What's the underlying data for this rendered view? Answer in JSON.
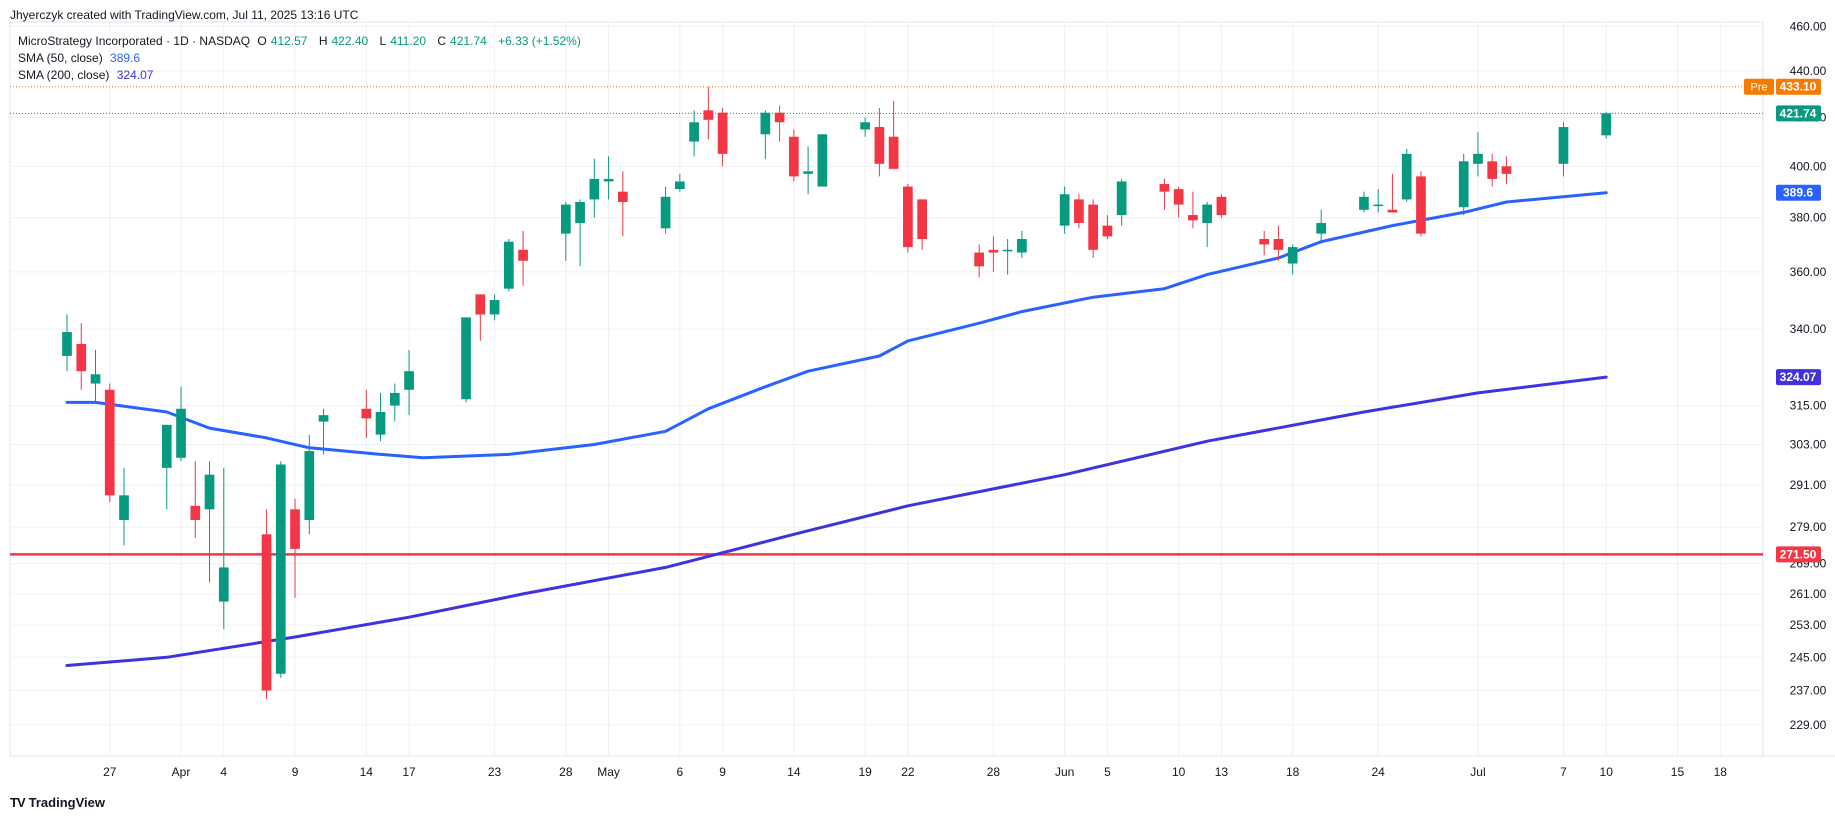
{
  "header": {
    "credit": "Jhyerczyk created with TradingView.com, Jul 11, 2025 13:16 UTC"
  },
  "legend": {
    "symbol": "MicroStrategy Incorporated · 1D · NASDAQ",
    "o_label": "O",
    "o_value": "412.57",
    "h_label": "H",
    "h_value": "422.40",
    "l_label": "L",
    "l_value": "411.20",
    "c_label": "C",
    "c_value": "421.74",
    "change": "+6.33 (+1.52%)",
    "sma50_label": "SMA (50, close)",
    "sma50_value": "389.6",
    "sma200_label": "SMA (200, close)",
    "sma200_value": "324.07"
  },
  "footer": {
    "brand": "TradingView",
    "logo": "TV"
  },
  "colors": {
    "up": "#089981",
    "down": "#f23645",
    "sma50": "#2962ff",
    "sma200": "#3f32e0",
    "level": "#f23645",
    "pre": "#f57c00",
    "grid": "#eef0f4",
    "axis_text": "#131722"
  },
  "chart_data": {
    "type": "candlestick",
    "y_scale": "log",
    "ylim": [
      222,
      462
    ],
    "y_ticks": [
      229,
      237,
      245,
      253,
      261,
      269,
      279,
      291,
      303,
      315,
      340,
      360,
      380,
      400,
      420,
      440,
      460
    ],
    "x_tick_labels": [
      {
        "label": "27",
        "date": "2025-03-27"
      },
      {
        "label": "Apr",
        "date": "2025-04-01"
      },
      {
        "label": "4",
        "date": "2025-04-04"
      },
      {
        "label": "9",
        "date": "2025-04-09"
      },
      {
        "label": "14",
        "date": "2025-04-14"
      },
      {
        "label": "17",
        "date": "2025-04-17"
      },
      {
        "label": "23",
        "date": "2025-04-23"
      },
      {
        "label": "28",
        "date": "2025-04-28"
      },
      {
        "label": "May",
        "date": "2025-05-01"
      },
      {
        "label": "6",
        "date": "2025-05-06"
      },
      {
        "label": "9",
        "date": "2025-05-09"
      },
      {
        "label": "14",
        "date": "2025-05-14"
      },
      {
        "label": "19",
        "date": "2025-05-19"
      },
      {
        "label": "22",
        "date": "2025-05-22"
      },
      {
        "label": "28",
        "date": "2025-05-28"
      },
      {
        "label": "Jun",
        "date": "2025-06-02"
      },
      {
        "label": "5",
        "date": "2025-06-05"
      },
      {
        "label": "10",
        "date": "2025-06-10"
      },
      {
        "label": "13",
        "date": "2025-06-13"
      },
      {
        "label": "18",
        "date": "2025-06-18"
      },
      {
        "label": "24",
        "date": "2025-06-24"
      },
      {
        "label": "Jul",
        "date": "2025-07-01"
      },
      {
        "label": "7",
        "date": "2025-07-07"
      },
      {
        "label": "10",
        "date": "2025-07-10"
      },
      {
        "label": "15",
        "date": "2025-07-15"
      },
      {
        "label": "18",
        "date": "2025-07-18"
      }
    ],
    "candles": [
      {
        "date": "2025-03-24",
        "o": 331,
        "h": 345,
        "l": 326,
        "c": 339
      },
      {
        "date": "2025-03-25",
        "o": 335,
        "h": 342,
        "l": 320,
        "c": 326
      },
      {
        "date": "2025-03-26",
        "o": 322,
        "h": 333,
        "l": 316,
        "c": 325
      },
      {
        "date": "2025-03-27",
        "o": 320,
        "h": 322,
        "l": 286,
        "c": 288
      },
      {
        "date": "2025-03-28",
        "o": 281,
        "h": 296,
        "l": 274,
        "c": 288
      },
      {
        "date": "2025-03-31",
        "o": 296,
        "h": 309,
        "l": 284,
        "c": 309
      },
      {
        "date": "2025-04-01",
        "o": 299,
        "h": 321,
        "l": 298,
        "c": 314
      },
      {
        "date": "2025-04-02",
        "o": 285,
        "h": 298,
        "l": 276,
        "c": 281
      },
      {
        "date": "2025-04-03",
        "o": 284,
        "h": 298,
        "l": 264,
        "c": 294
      },
      {
        "date": "2025-04-04",
        "o": 259,
        "h": 296,
        "l": 252,
        "c": 268
      },
      {
        "date": "2025-04-07",
        "o": 277,
        "h": 284,
        "l": 235,
        "c": 237
      },
      {
        "date": "2025-04-08",
        "o": 241,
        "h": 298,
        "l": 240,
        "c": 297
      },
      {
        "date": "2025-04-09",
        "o": 284,
        "h": 287,
        "l": 260,
        "c": 273
      },
      {
        "date": "2025-04-10",
        "o": 281,
        "h": 306,
        "l": 277,
        "c": 301
      },
      {
        "date": "2025-04-11",
        "o": 310,
        "h": 314,
        "l": 300,
        "c": 312
      },
      {
        "date": "2025-04-14",
        "o": 314,
        "h": 320,
        "l": 305,
        "c": 311
      },
      {
        "date": "2025-04-15",
        "o": 306,
        "h": 319,
        "l": 304,
        "c": 313
      },
      {
        "date": "2025-04-16",
        "o": 315,
        "h": 322,
        "l": 310,
        "c": 319
      },
      {
        "date": "2025-04-17",
        "o": 320,
        "h": 333,
        "l": 312,
        "c": 326
      },
      {
        "date": "2025-04-21",
        "o": 317,
        "h": 344,
        "l": 316,
        "c": 344
      },
      {
        "date": "2025-04-22",
        "o": 352,
        "h": 352,
        "l": 336,
        "c": 345
      },
      {
        "date": "2025-04-23",
        "o": 345,
        "h": 352,
        "l": 343,
        "c": 350
      },
      {
        "date": "2025-04-24",
        "o": 354,
        "h": 372,
        "l": 353,
        "c": 371
      },
      {
        "date": "2025-04-25",
        "o": 368,
        "h": 375,
        "l": 355,
        "c": 364
      },
      {
        "date": "2025-04-28",
        "o": 374,
        "h": 386,
        "l": 364,
        "c": 385
      },
      {
        "date": "2025-04-29",
        "o": 378,
        "h": 387,
        "l": 362,
        "c": 386
      },
      {
        "date": "2025-04-30",
        "o": 387,
        "h": 403,
        "l": 380,
        "c": 395
      },
      {
        "date": "2025-05-01",
        "o": 394,
        "h": 404,
        "l": 387,
        "c": 395
      },
      {
        "date": "2025-05-02",
        "o": 390,
        "h": 398,
        "l": 373,
        "c": 386
      },
      {
        "date": "2025-05-05",
        "o": 376,
        "h": 392,
        "l": 374,
        "c": 388
      },
      {
        "date": "2025-05-06",
        "o": 391,
        "h": 397,
        "l": 390,
        "c": 394
      },
      {
        "date": "2025-05-07",
        "o": 410,
        "h": 423,
        "l": 404,
        "c": 418
      },
      {
        "date": "2025-05-08",
        "o": 423,
        "h": 433,
        "l": 411,
        "c": 419
      },
      {
        "date": "2025-05-09",
        "o": 422,
        "h": 424,
        "l": 400,
        "c": 405
      },
      {
        "date": "2025-05-12",
        "o": 413,
        "h": 423,
        "l": 403,
        "c": 422
      },
      {
        "date": "2025-05-13",
        "o": 422,
        "h": 425,
        "l": 410,
        "c": 418
      },
      {
        "date": "2025-05-14",
        "o": 412,
        "h": 415,
        "l": 394,
        "c": 396
      },
      {
        "date": "2025-05-15",
        "o": 397,
        "h": 408,
        "l": 389,
        "c": 398
      },
      {
        "date": "2025-05-16",
        "o": 392,
        "h": 413,
        "l": 392,
        "c": 413
      },
      {
        "date": "2025-05-19",
        "o": 415,
        "h": 420,
        "l": 412,
        "c": 418
      },
      {
        "date": "2025-05-20",
        "o": 416,
        "h": 424,
        "l": 396,
        "c": 401
      },
      {
        "date": "2025-05-21",
        "o": 412,
        "h": 427,
        "l": 399,
        "c": 399
      },
      {
        "date": "2025-05-22",
        "o": 392,
        "h": 393,
        "l": 367,
        "c": 369
      },
      {
        "date": "2025-05-23",
        "o": 387,
        "h": 387,
        "l": 368,
        "c": 372
      },
      {
        "date": "2025-05-27",
        "o": 367,
        "h": 370,
        "l": 358,
        "c": 362
      },
      {
        "date": "2025-05-28",
        "o": 368,
        "h": 373,
        "l": 360,
        "c": 367
      },
      {
        "date": "2025-05-29",
        "o": 368,
        "h": 372,
        "l": 359,
        "c": 368
      },
      {
        "date": "2025-05-30",
        "o": 367,
        "h": 375,
        "l": 365,
        "c": 372
      },
      {
        "date": "2025-06-02",
        "o": 377,
        "h": 392,
        "l": 374,
        "c": 389
      },
      {
        "date": "2025-06-03",
        "o": 387,
        "h": 389,
        "l": 376,
        "c": 378
      },
      {
        "date": "2025-06-04",
        "o": 385,
        "h": 387,
        "l": 365,
        "c": 368
      },
      {
        "date": "2025-06-05",
        "o": 377,
        "h": 381,
        "l": 372,
        "c": 373
      },
      {
        "date": "2025-06-06",
        "o": 381,
        "h": 395,
        "l": 377,
        "c": 394
      },
      {
        "date": "2025-06-09",
        "o": 393,
        "h": 395,
        "l": 383,
        "c": 390
      },
      {
        "date": "2025-06-10",
        "o": 391,
        "h": 392,
        "l": 380,
        "c": 385
      },
      {
        "date": "2025-06-11",
        "o": 381,
        "h": 390,
        "l": 376,
        "c": 379
      },
      {
        "date": "2025-06-12",
        "o": 378,
        "h": 386,
        "l": 369,
        "c": 385
      },
      {
        "date": "2025-06-13",
        "o": 388,
        "h": 389,
        "l": 380,
        "c": 381
      },
      {
        "date": "2025-06-16",
        "o": 372,
        "h": 375,
        "l": 366,
        "c": 370
      },
      {
        "date": "2025-06-17",
        "o": 372,
        "h": 377,
        "l": 364,
        "c": 368
      },
      {
        "date": "2025-06-18",
        "o": 363,
        "h": 370,
        "l": 359,
        "c": 369
      },
      {
        "date": "2025-06-20",
        "o": 374,
        "h": 383,
        "l": 371,
        "c": 378
      },
      {
        "date": "2025-06-23",
        "o": 383,
        "h": 390,
        "l": 382,
        "c": 388
      },
      {
        "date": "2025-06-24",
        "o": 385,
        "h": 391,
        "l": 382,
        "c": 385
      },
      {
        "date": "2025-06-25",
        "o": 383,
        "h": 397,
        "l": 382,
        "c": 382
      },
      {
        "date": "2025-06-26",
        "o": 387,
        "h": 407,
        "l": 386,
        "c": 405
      },
      {
        "date": "2025-06-27",
        "o": 396,
        "h": 398,
        "l": 373,
        "c": 374
      },
      {
        "date": "2025-06-30",
        "o": 384,
        "h": 405,
        "l": 381,
        "c": 402
      },
      {
        "date": "2025-07-01",
        "o": 401,
        "h": 414,
        "l": 396,
        "c": 405
      },
      {
        "date": "2025-07-02",
        "o": 402,
        "h": 405,
        "l": 392,
        "c": 395
      },
      {
        "date": "2025-07-03",
        "o": 400,
        "h": 404,
        "l": 393,
        "c": 397
      },
      {
        "date": "2025-07-07",
        "o": 401,
        "h": 418,
        "l": 396,
        "c": 416
      },
      {
        "date": "2025-07-10",
        "o": 412.57,
        "h": 422.4,
        "l": 411.2,
        "c": 421.74
      }
    ],
    "sma50": [
      {
        "date": "2025-03-24",
        "v": 316
      },
      {
        "date": "2025-03-26",
        "v": 316
      },
      {
        "date": "2025-03-31",
        "v": 313
      },
      {
        "date": "2025-04-03",
        "v": 308
      },
      {
        "date": "2025-04-07",
        "v": 305
      },
      {
        "date": "2025-04-10",
        "v": 302
      },
      {
        "date": "2025-04-15",
        "v": 300
      },
      {
        "date": "2025-04-18",
        "v": 299
      },
      {
        "date": "2025-04-24",
        "v": 300
      },
      {
        "date": "2025-04-30",
        "v": 303
      },
      {
        "date": "2025-05-05",
        "v": 307
      },
      {
        "date": "2025-05-08",
        "v": 314
      },
      {
        "date": "2025-05-12",
        "v": 321
      },
      {
        "date": "2025-05-15",
        "v": 326
      },
      {
        "date": "2025-05-20",
        "v": 331
      },
      {
        "date": "2025-05-22",
        "v": 336
      },
      {
        "date": "2025-05-27",
        "v": 342
      },
      {
        "date": "2025-05-30",
        "v": 346
      },
      {
        "date": "2025-06-04",
        "v": 351
      },
      {
        "date": "2025-06-09",
        "v": 354
      },
      {
        "date": "2025-06-12",
        "v": 359
      },
      {
        "date": "2025-06-17",
        "v": 365
      },
      {
        "date": "2025-06-20",
        "v": 371
      },
      {
        "date": "2025-06-25",
        "v": 377
      },
      {
        "date": "2025-06-30",
        "v": 382
      },
      {
        "date": "2025-07-03",
        "v": 386
      },
      {
        "date": "2025-07-10",
        "v": 389.6
      }
    ],
    "sma200": [
      {
        "date": "2025-03-24",
        "v": 243
      },
      {
        "date": "2025-03-31",
        "v": 245
      },
      {
        "date": "2025-04-09",
        "v": 250
      },
      {
        "date": "2025-04-17",
        "v": 255
      },
      {
        "date": "2025-04-25",
        "v": 261
      },
      {
        "date": "2025-05-05",
        "v": 268
      },
      {
        "date": "2025-05-14",
        "v": 277
      },
      {
        "date": "2025-05-22",
        "v": 285
      },
      {
        "date": "2025-06-02",
        "v": 294
      },
      {
        "date": "2025-06-12",
        "v": 304
      },
      {
        "date": "2025-06-23",
        "v": 313
      },
      {
        "date": "2025-07-01",
        "v": 319
      },
      {
        "date": "2025-07-10",
        "v": 324.07
      }
    ],
    "horizontal_level": {
      "value": 271.5,
      "label": "271.50"
    },
    "price_tags": {
      "pre": {
        "tag": "Pre",
        "value": 433.1,
        "label": "433.10"
      },
      "last": {
        "value": 421.74,
        "label": "421.74"
      },
      "sma50": {
        "value": 389.6,
        "label": "389.6"
      },
      "sma200": {
        "value": 324.07,
        "label": "324.07"
      }
    }
  }
}
